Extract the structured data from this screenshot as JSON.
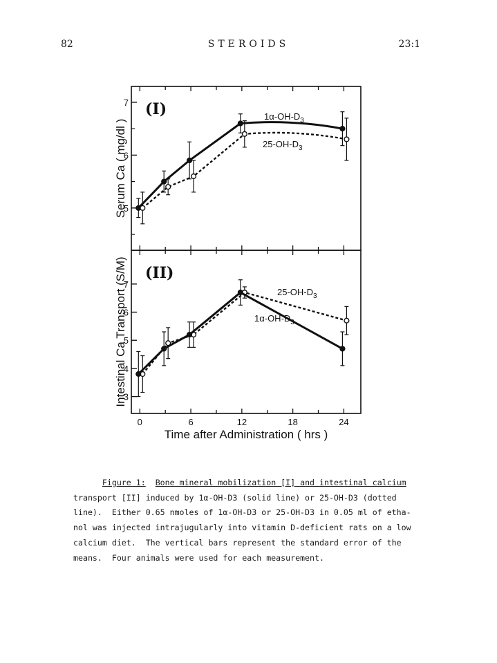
{
  "header": {
    "page_number": "82",
    "journal": "STEROIDS",
    "issue": "23:1"
  },
  "chart_data": [
    {
      "type": "line",
      "panel_label": "(I)",
      "title": "",
      "xlabel": "",
      "ylabel": "Serum Ca ( mg/dl )",
      "xlim": [
        -1,
        26
      ],
      "ylim": [
        4.2,
        7.3
      ],
      "yticks": [
        "5",
        "6",
        "7"
      ],
      "yticks_values": [
        5,
        6,
        7
      ],
      "series": [
        {
          "name": "1α-OH-D3",
          "style": "solid",
          "marker": "filled-circle",
          "x": [
            0,
            3,
            6,
            12,
            24
          ],
          "y": [
            5.0,
            5.5,
            5.9,
            6.6,
            6.5
          ],
          "err": [
            0.18,
            0.2,
            0.35,
            0.18,
            0.32
          ]
        },
        {
          "name": "25-OH-D3",
          "style": "dotted",
          "marker": "open-circle",
          "x": [
            0,
            3,
            6,
            12,
            24
          ],
          "y": [
            5.0,
            5.4,
            5.6,
            6.4,
            6.3
          ],
          "err": [
            0.3,
            0.15,
            0.3,
            0.25,
            0.4
          ]
        }
      ]
    },
    {
      "type": "line",
      "panel_label": "(II)",
      "title": "",
      "xlabel": "Time after Administration ( hrs )",
      "ylabel": "Intestinal Ca Transport (S/M)",
      "xlim": [
        -1,
        26
      ],
      "ylim": [
        2.4,
        8.2
      ],
      "xticks": [
        "0",
        "6",
        "12",
        "18",
        "24"
      ],
      "xticks_values": [
        0,
        6,
        12,
        18,
        24
      ],
      "yticks": [
        "3",
        "4",
        "5",
        "6",
        "7"
      ],
      "yticks_values": [
        3,
        4,
        5,
        6,
        7
      ],
      "series": [
        {
          "name": "25-OH-D3",
          "style": "dotted",
          "marker": "open-circle",
          "x": [
            0,
            3,
            6,
            12,
            24
          ],
          "y": [
            3.8,
            4.9,
            5.2,
            6.7,
            5.7
          ],
          "err": [
            0.65,
            0.55,
            0.45,
            0.2,
            0.5
          ]
        },
        {
          "name": "1α-OH-D3",
          "style": "solid",
          "marker": "filled-circle",
          "x": [
            0,
            3,
            6,
            12,
            24
          ],
          "y": [
            3.8,
            4.7,
            5.2,
            6.7,
            4.7
          ],
          "err": [
            0.8,
            0.6,
            0.45,
            0.45,
            0.6
          ]
        }
      ]
    }
  ],
  "caption": {
    "figure_label": "Figure 1:",
    "title_text": "Bone mineral mobilization [I] and intestinal calcium",
    "line2": "transport [II] induced by 1α-OH-D3 (solid line) or 25-OH-D3 (dotted",
    "line3": "line).  Either 0.65 nmoles of 1α-OH-D3 or 25-OH-D3 in 0.05 ml of etha-",
    "line4": "nol was injected intrajugularly into vitamin D-deficient rats on a low",
    "line5": "calcium diet.  The vertical bars represent the standard error of the",
    "line6": "means.  Four animals were used for each measurement."
  }
}
